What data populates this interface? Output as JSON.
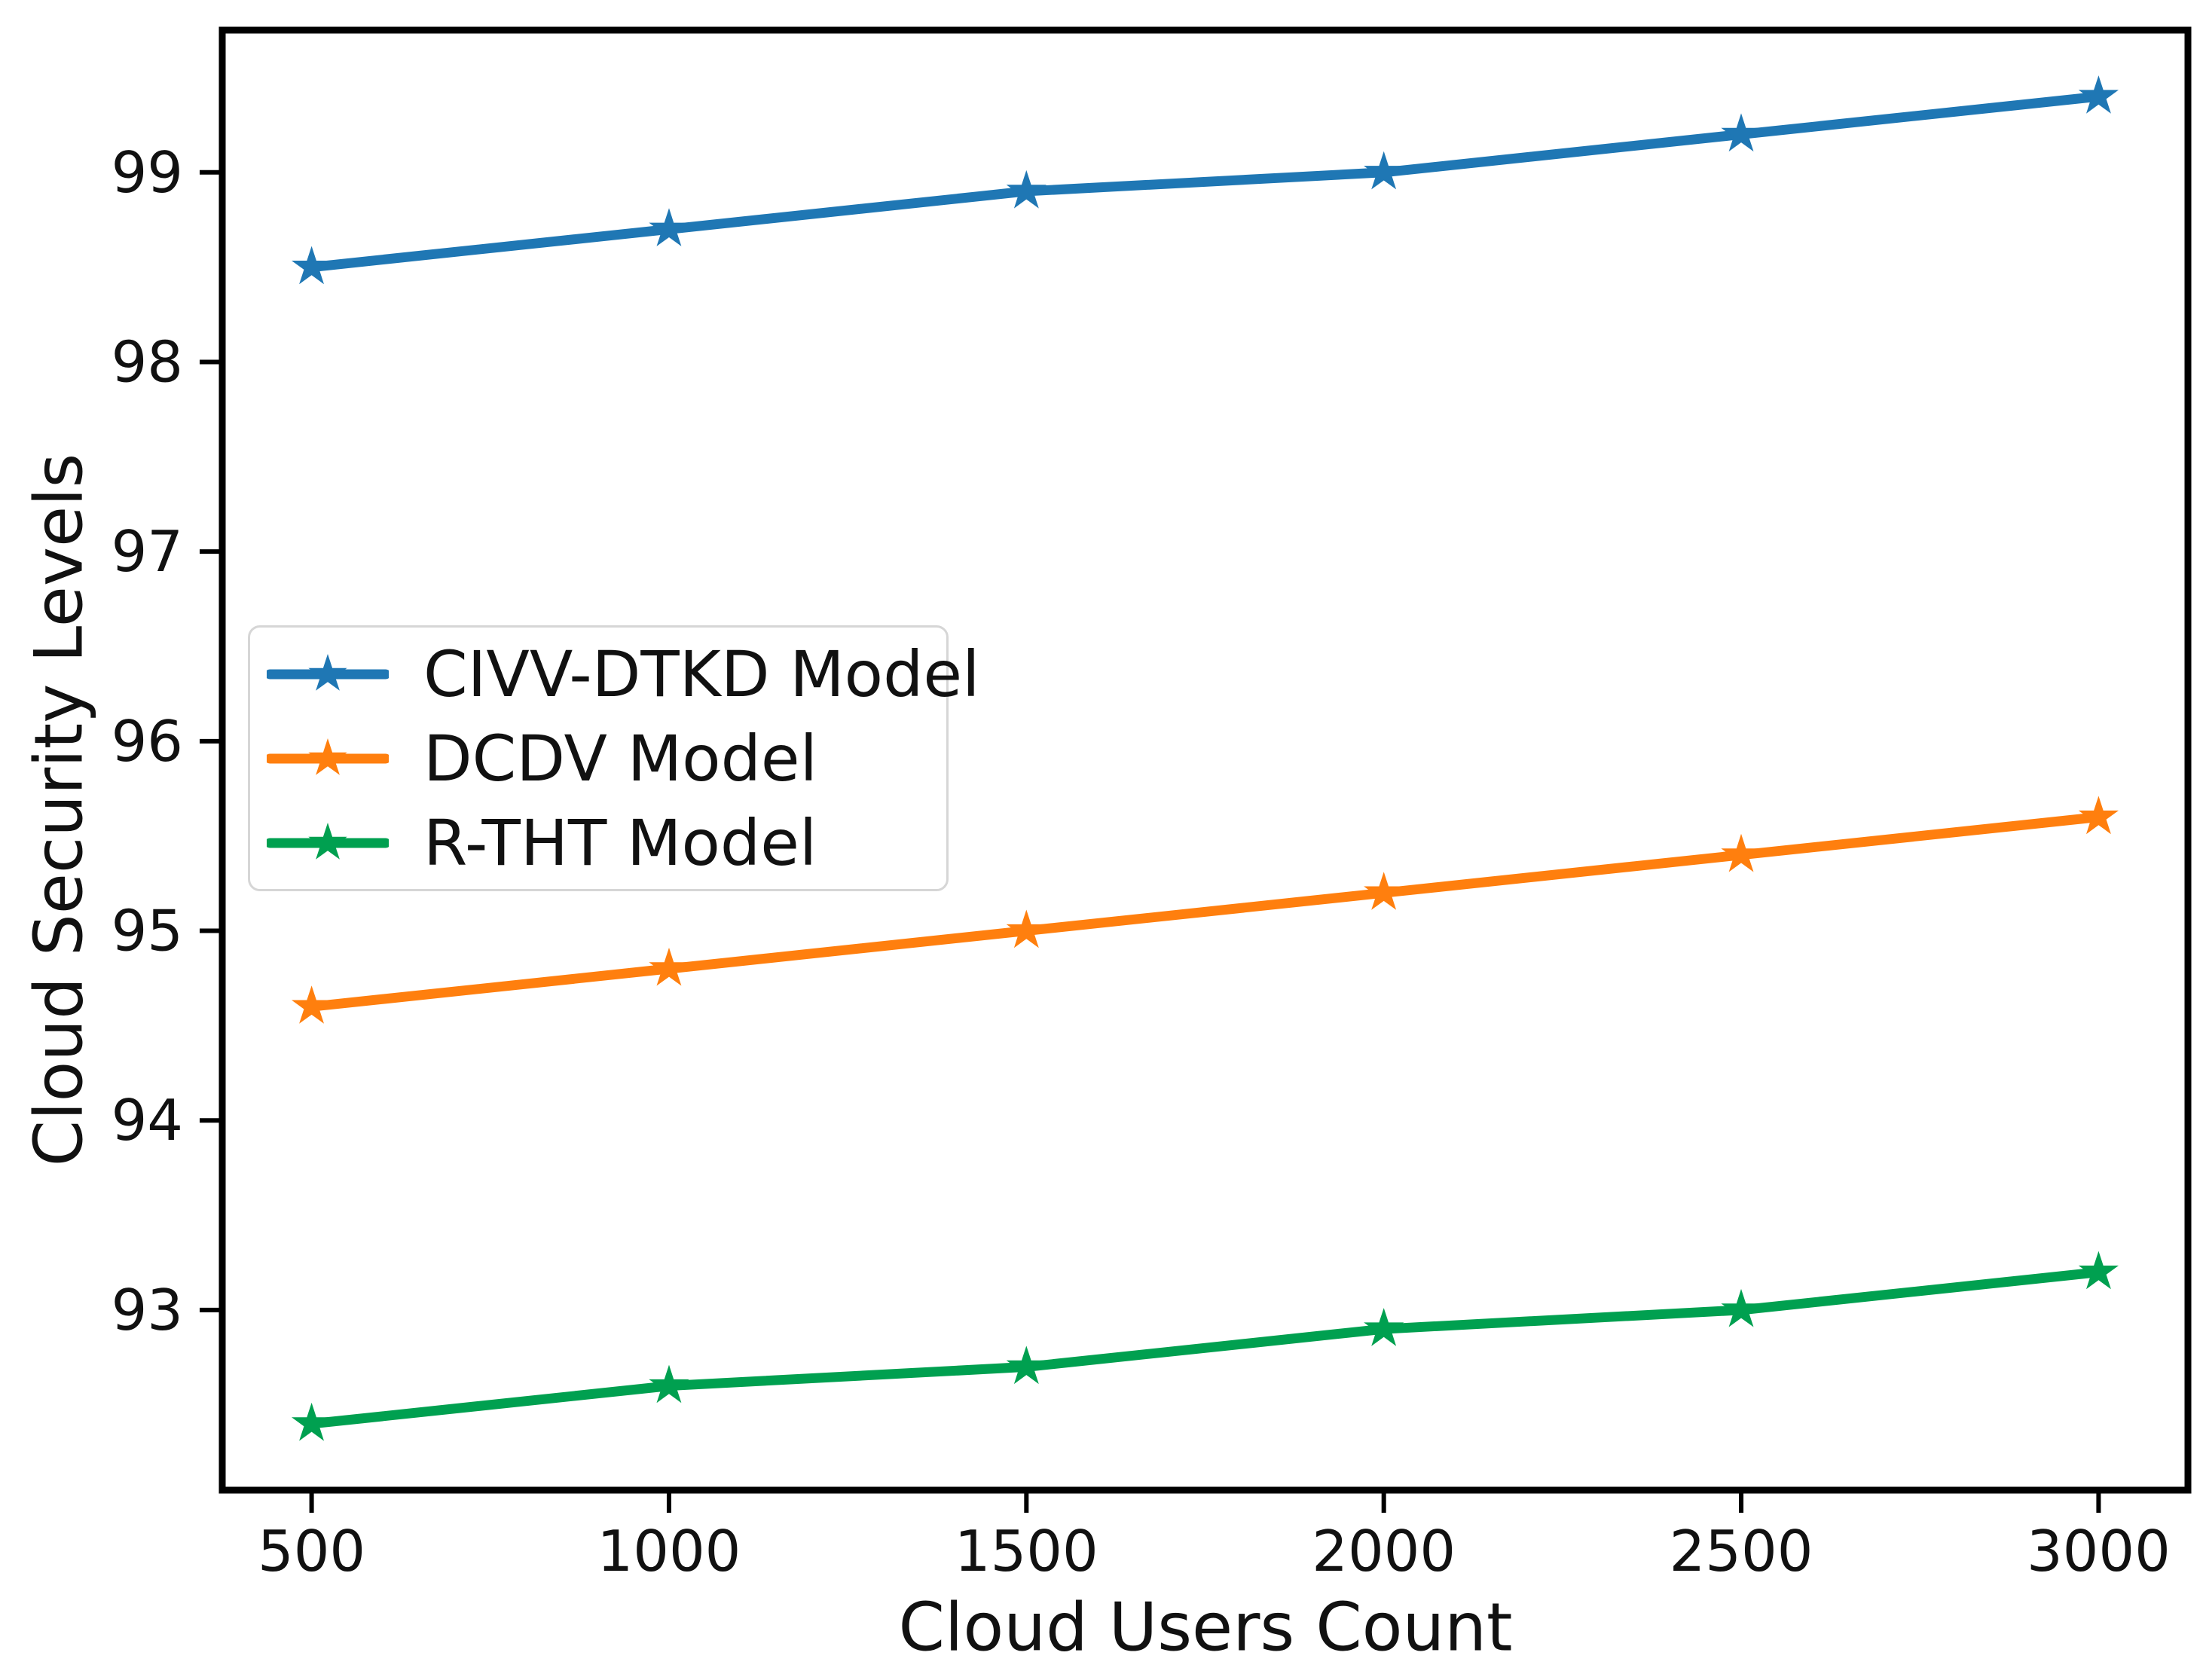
{
  "figure": {
    "background": "#ffffff",
    "text_color": "#111111",
    "axis_color": "#000000"
  },
  "chart_data": {
    "type": "line",
    "title": "",
    "xlabel": "Cloud Users Count",
    "ylabel": "Cloud Security Levels",
    "x": [
      500,
      1000,
      1500,
      2000,
      2500,
      3000
    ],
    "xticks": [
      500,
      1000,
      1500,
      2000,
      2500,
      3000
    ],
    "yticks": [
      93,
      94,
      95,
      96,
      97,
      98,
      99
    ],
    "xlim": [
      375,
      3125
    ],
    "ylim": [
      92.05,
      99.75
    ],
    "grid": false,
    "marker": "star",
    "legend_position": "center-left",
    "series": [
      {
        "name": "CIVV-DTKD Model",
        "color": "#1f77b4",
        "values": [
          98.5,
          98.7,
          98.9,
          99.0,
          99.2,
          99.4
        ]
      },
      {
        "name": "DCDV Model",
        "color": "#ff7f0e",
        "values": [
          94.6,
          94.8,
          95.0,
          95.2,
          95.4,
          95.6
        ]
      },
      {
        "name": "R-THT Model",
        "color": "#00a050",
        "values": [
          92.4,
          92.6,
          92.7,
          92.9,
          93.0,
          93.2
        ]
      }
    ]
  }
}
